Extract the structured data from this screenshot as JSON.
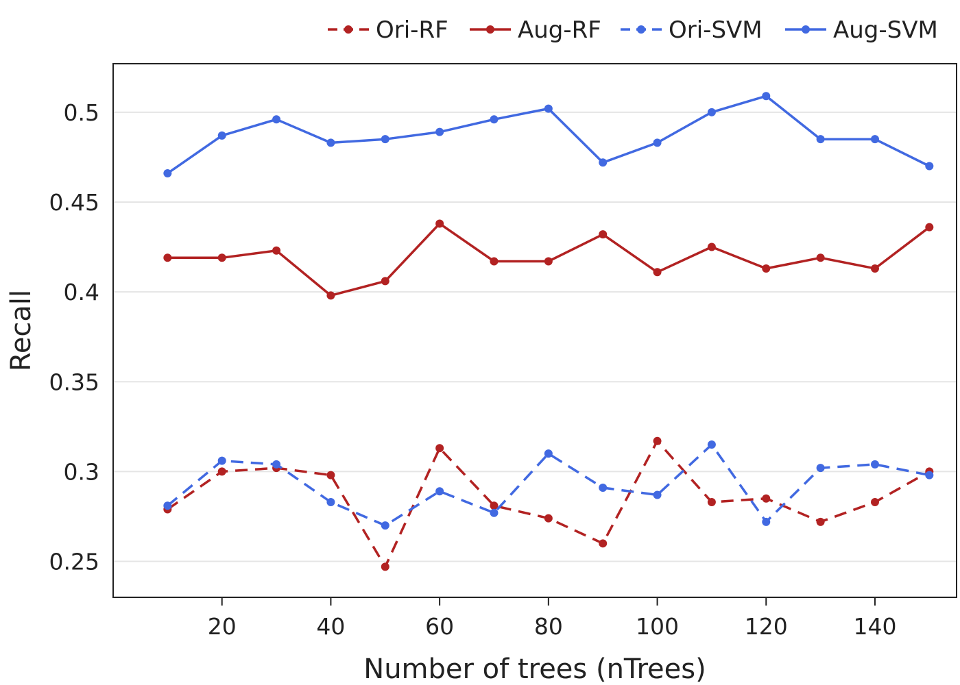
{
  "chart_data": {
    "type": "line",
    "title": "",
    "xlabel": "Number of trees (nTrees)",
    "ylabel": "Recall",
    "xlim": [
      0,
      155
    ],
    "ylim": [
      0.23,
      0.527
    ],
    "x_ticks": [
      20,
      40,
      60,
      80,
      100,
      120,
      140
    ],
    "x_tick_labels": [
      "20",
      "40",
      "60",
      "80",
      "100",
      "120",
      "140"
    ],
    "y_ticks": [
      0.25,
      0.3,
      0.35,
      0.4,
      0.45,
      0.5
    ],
    "y_tick_labels": [
      "0.25",
      "0.3",
      "0.35",
      "0.4",
      "0.45",
      "0.5"
    ],
    "grid": "horizontal",
    "legend_position": "top-right",
    "x": [
      10,
      20,
      30,
      40,
      50,
      60,
      70,
      80,
      90,
      100,
      110,
      120,
      130,
      140,
      150
    ],
    "series": [
      {
        "name": "Ori-RF",
        "color": "#b22222",
        "dash": "dashed",
        "values": [
          0.279,
          0.3,
          0.302,
          0.298,
          0.247,
          0.313,
          0.281,
          0.274,
          0.26,
          0.317,
          0.283,
          0.285,
          0.272,
          0.283,
          0.3
        ]
      },
      {
        "name": "Aug-RF",
        "color": "#b22222",
        "dash": "solid",
        "values": [
          0.419,
          0.419,
          0.423,
          0.398,
          0.406,
          0.438,
          0.417,
          0.417,
          0.432,
          0.411,
          0.425,
          0.413,
          0.419,
          0.413,
          0.436
        ]
      },
      {
        "name": "Ori-SVM",
        "color": "#4169e1",
        "dash": "dashed",
        "values": [
          0.281,
          0.306,
          0.304,
          0.283,
          0.27,
          0.289,
          0.277,
          0.31,
          0.291,
          0.287,
          0.315,
          0.272,
          0.302,
          0.304,
          0.298
        ]
      },
      {
        "name": "Aug-SVM",
        "color": "#4169e1",
        "dash": "solid",
        "values": [
          0.466,
          0.487,
          0.496,
          0.483,
          0.485,
          0.489,
          0.496,
          0.502,
          0.472,
          0.483,
          0.5,
          0.509,
          0.485,
          0.485,
          0.47
        ]
      }
    ]
  }
}
